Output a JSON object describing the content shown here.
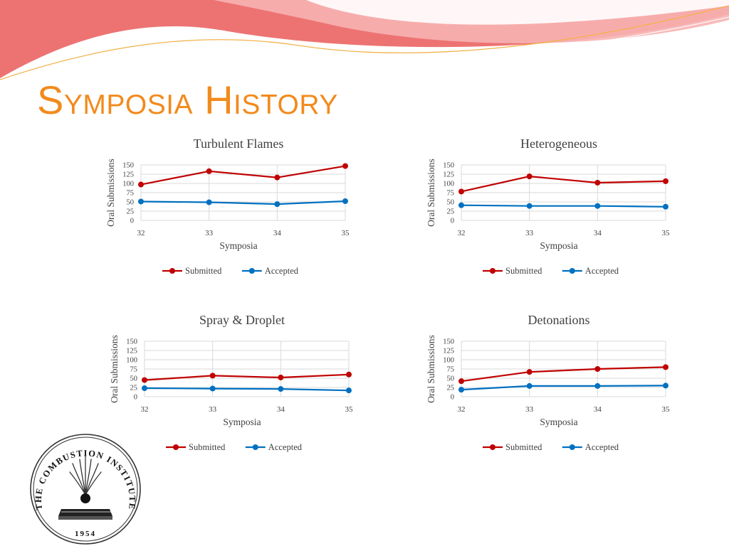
{
  "slide": {
    "title": "Symposia History"
  },
  "colors": {
    "title": "#f28a1c",
    "submitted": "#c00000",
    "accepted": "#0070c0",
    "banner_red": "#ea5b5b",
    "banner_pink": "#f7b3b3"
  },
  "logo": {
    "name": "THE COMBUSTION INSTITUTE",
    "year": "1954",
    "icon": "flame-over-book-seal"
  },
  "chart_data": [
    {
      "type": "line",
      "title": "Turbulent Flames",
      "xlabel": "Symposia",
      "ylabel": "Oral Submissions",
      "categories": [
        "32",
        "33",
        "34",
        "35"
      ],
      "ylim": [
        0,
        150
      ],
      "yticks": [
        "0",
        "25",
        "50",
        "75",
        "100",
        "125",
        "150"
      ],
      "grid": true,
      "legend": "bottom",
      "series": [
        {
          "name": "Submitted",
          "values": [
            97,
            133,
            116,
            147
          ]
        },
        {
          "name": "Accepted",
          "values": [
            51,
            49,
            44,
            52
          ]
        }
      ]
    },
    {
      "type": "line",
      "title": "Heterogeneous",
      "xlabel": "Symposia",
      "ylabel": "Oral Submissions",
      "categories": [
        "32",
        "33",
        "34",
        "35"
      ],
      "ylim": [
        0,
        150
      ],
      "yticks": [
        "0",
        "25",
        "50",
        "75",
        "100",
        "125",
        "150"
      ],
      "grid": true,
      "legend": "bottom",
      "series": [
        {
          "name": "Submitted",
          "values": [
            78,
            119,
            102,
            106
          ]
        },
        {
          "name": "Accepted",
          "values": [
            41,
            39,
            39,
            37
          ]
        }
      ]
    },
    {
      "type": "line",
      "title": "Spray & Droplet",
      "xlabel": "Symposia",
      "ylabel": "Oral Submissions",
      "categories": [
        "32",
        "33",
        "34",
        "35"
      ],
      "ylim": [
        0,
        150
      ],
      "yticks": [
        "0",
        "25",
        "50",
        "75",
        "100",
        "125",
        "150"
      ],
      "grid": true,
      "legend": "bottom",
      "series": [
        {
          "name": "Submitted",
          "values": [
            45,
            57,
            52,
            60
          ]
        },
        {
          "name": "Accepted",
          "values": [
            23,
            22,
            21,
            17
          ]
        }
      ]
    },
    {
      "type": "line",
      "title": "Detonations",
      "xlabel": "Symposia",
      "ylabel": "Oral Submissions",
      "categories": [
        "32",
        "33",
        "34",
        "35"
      ],
      "ylim": [
        0,
        150
      ],
      "yticks": [
        "0",
        "25",
        "50",
        "75",
        "100",
        "125",
        "150"
      ],
      "grid": true,
      "legend": "bottom",
      "series": [
        {
          "name": "Submitted",
          "values": [
            42,
            67,
            75,
            80
          ]
        },
        {
          "name": "Accepted",
          "values": [
            19,
            29,
            29,
            30
          ]
        }
      ]
    }
  ]
}
